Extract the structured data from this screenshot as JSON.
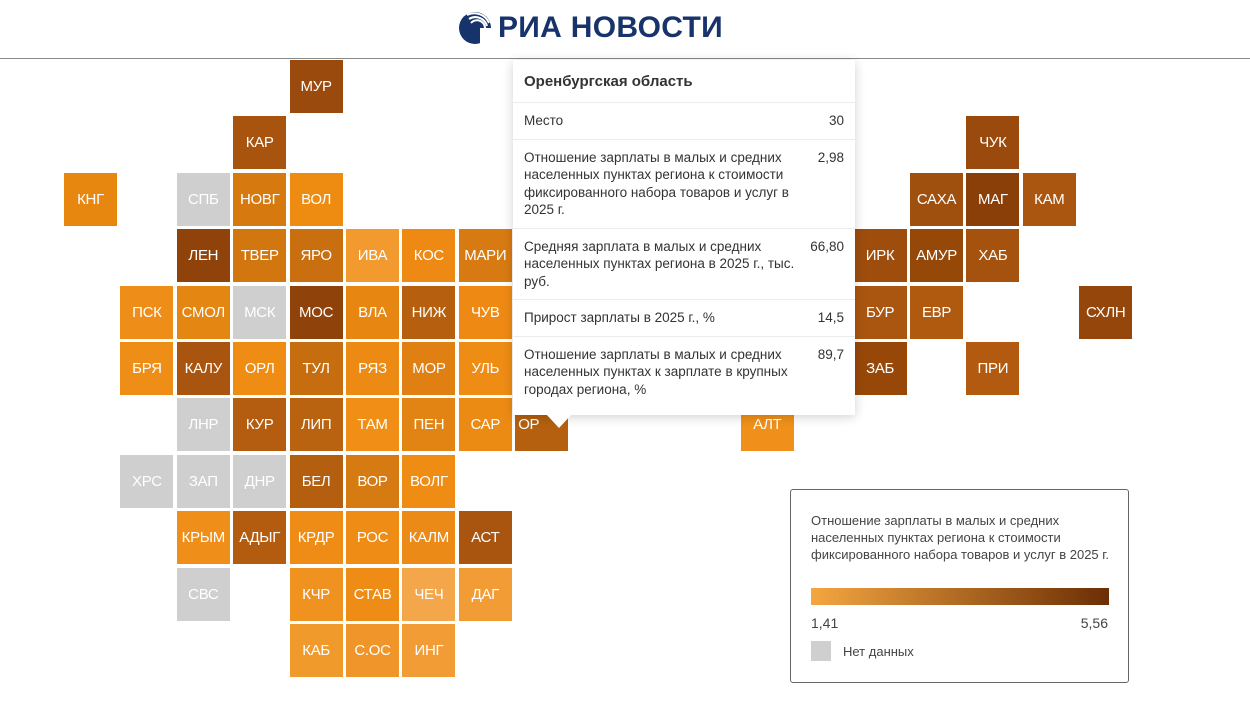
{
  "header": {
    "brand": "РИА НОВОСТИ",
    "brand_color": "#17336b"
  },
  "tiles": [
    {
      "label": "МУР",
      "color": "#9a4a0c"
    },
    {
      "label": "КАР",
      "color": "#a9540e"
    },
    {
      "label": "ЧУК",
      "color": "#9a4a0c"
    },
    {
      "label": "КНГ",
      "color": "#e8870f"
    },
    {
      "label": "СПБ",
      "color": "#cfcfcf"
    },
    {
      "label": "НОВГ",
      "color": "#d67a10"
    },
    {
      "label": "ВОЛ",
      "color": "#ee8c12"
    },
    {
      "label": "САХА",
      "color": "#a0500e"
    },
    {
      "label": "МАГ",
      "color": "#8a3f08"
    },
    {
      "label": "КАМ",
      "color": "#ab5610"
    },
    {
      "label": "ЛЕН",
      "color": "#8f430b"
    },
    {
      "label": "ТВЕР",
      "color": "#d27610"
    },
    {
      "label": "ЯРО",
      "color": "#c96f10"
    },
    {
      "label": "ИВА",
      "color": "#f29a2e"
    },
    {
      "label": "КОС",
      "color": "#ee8a14"
    },
    {
      "label": "МАРИ",
      "color": "#d87a12"
    },
    {
      "label": "ИРК",
      "color": "#9e4d0d"
    },
    {
      "label": "АМУР",
      "color": "#964809"
    },
    {
      "label": "ХАБ",
      "color": "#a5520f"
    },
    {
      "label": "ПСК",
      "color": "#ee8d18"
    },
    {
      "label": "СМОЛ",
      "color": "#e48612"
    },
    {
      "label": "МСК",
      "color": "#cfcfcf"
    },
    {
      "label": "МОС",
      "color": "#8f420a"
    },
    {
      "label": "ВЛА",
      "color": "#e78712"
    },
    {
      "label": "НИЖ",
      "color": "#b6600f"
    },
    {
      "label": "ЧУВ",
      "color": "#ee8a14"
    },
    {
      "label": "БУР",
      "color": "#aa5510"
    },
    {
      "label": "ЕВР",
      "color": "#b05a10"
    },
    {
      "label": "СХЛН",
      "color": "#94460b"
    },
    {
      "label": "БРЯ",
      "color": "#ef8e16"
    },
    {
      "label": "КАЛУ",
      "color": "#a9540f"
    },
    {
      "label": "ОРЛ",
      "color": "#ee8c14"
    },
    {
      "label": "ТУЛ",
      "color": "#c66d10"
    },
    {
      "label": "РЯЗ",
      "color": "#ec8a14"
    },
    {
      "label": "МОР",
      "color": "#e08013"
    },
    {
      "label": "УЛЬ",
      "color": "#ee8c14"
    },
    {
      "label": "ЗАБ",
      "color": "#974809"
    },
    {
      "label": "ПРИ",
      "color": "#b25b10"
    },
    {
      "label": "ЛНР",
      "color": "#cfcfcf"
    },
    {
      "label": "КУР",
      "color": "#b45c0f"
    },
    {
      "label": "ЛИП",
      "color": "#b9620f"
    },
    {
      "label": "ТАМ",
      "color": "#f08e16"
    },
    {
      "label": "ПЕН",
      "color": "#e28414"
    },
    {
      "label": "САР",
      "color": "#ec8b14"
    },
    {
      "label": "ОР",
      "color": "#b4600f"
    },
    {
      "label": "АЛТ",
      "color": "#f0901a"
    },
    {
      "label": "ХРС",
      "color": "#cfcfcf"
    },
    {
      "label": "ЗАП",
      "color": "#cfcfcf"
    },
    {
      "label": "ДНР",
      "color": "#cfcfcf"
    },
    {
      "label": "БЕЛ",
      "color": "#b45e0f"
    },
    {
      "label": "ВОР",
      "color": "#d67a12"
    },
    {
      "label": "ВОЛГ",
      "color": "#ee8c14"
    },
    {
      "label": "КРЫМ",
      "color": "#ef8e18"
    },
    {
      "label": "АДЫГ",
      "color": "#b35c0f"
    },
    {
      "label": "КРДР",
      "color": "#ee8c15"
    },
    {
      "label": "РОС",
      "color": "#ee8c16"
    },
    {
      "label": "КАЛМ",
      "color": "#ec8a18"
    },
    {
      "label": "АСТ",
      "color": "#a9540f"
    },
    {
      "label": "СВС",
      "color": "#cfcfcf"
    },
    {
      "label": "КЧР",
      "color": "#f09220"
    },
    {
      "label": "СТАВ",
      "color": "#ee8c15"
    },
    {
      "label": "ЧЕЧ",
      "color": "#f4a64a"
    },
    {
      "label": "ДАГ",
      "color": "#f29c35"
    },
    {
      "label": "КАБ",
      "color": "#f19a2c"
    },
    {
      "label": "С.ОС",
      "color": "#f0952a"
    },
    {
      "label": "ИНГ",
      "color": "#f29c35"
    }
  ],
  "tooltip": {
    "title": "Оренбургская область",
    "rows": [
      {
        "label": "Место",
        "value": "30"
      },
      {
        "label": "Отношение зарплаты в малых и средних населенных пунктах региона к стоимости фиксированного набора товаров и услуг в 2025 г.",
        "value": "2,98"
      },
      {
        "label": "Средняя зарплата в малых и средних населенных пунктах региона в 2025 г., тыс. руб.",
        "value": "66,80"
      },
      {
        "label": "Прирост зарплаты в 2025 г., %",
        "value": "14,5"
      },
      {
        "label": "Отношение зарплаты в малых и средних населенных пунктах к зарплате в крупных городах региона, %",
        "value": "89,7"
      }
    ]
  },
  "legend": {
    "title": "Отношение зарплаты в малых и средних населенных пунктах региона к стоимости фиксированного набора товаров и услуг в 2025 г.",
    "min": "1,41",
    "max": "5,56",
    "min_color": "#f4a640",
    "max_color": "#6b2e05",
    "nodata_label": "Нет данных",
    "nodata_color": "#cfcfcf"
  }
}
